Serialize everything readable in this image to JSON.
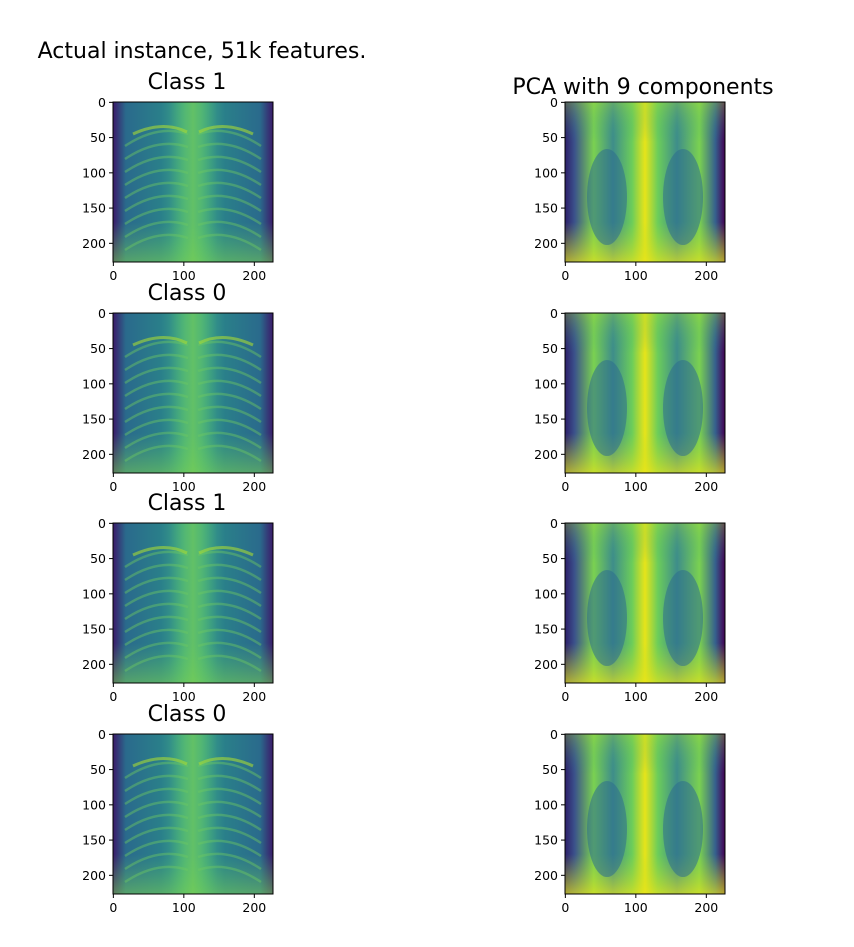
{
  "figure": {
    "suptitle_left": "Actual instance, 51k features.",
    "suptitle_right": "PCA with 9 components"
  },
  "chart_data": [
    {
      "type": "heatmap",
      "panel": "actual",
      "title": "Class 1",
      "xticks": [
        "0",
        "100",
        "200"
      ],
      "yticks": [
        "0",
        "50",
        "100",
        "150",
        "200"
      ],
      "xlim": [
        0,
        227
      ],
      "ylim": [
        227,
        0
      ],
      "colormap": "viridis"
    },
    {
      "type": "heatmap",
      "panel": "pca",
      "title": "",
      "xticks": [
        "0",
        "100",
        "200"
      ],
      "yticks": [
        "0",
        "50",
        "100",
        "150",
        "200"
      ],
      "xlim": [
        0,
        227
      ],
      "ylim": [
        227,
        0
      ],
      "colormap": "viridis"
    },
    {
      "type": "heatmap",
      "panel": "actual",
      "title": "Class 0",
      "xticks": [
        "0",
        "100",
        "200"
      ],
      "yticks": [
        "0",
        "50",
        "100",
        "150",
        "200"
      ],
      "xlim": [
        0,
        227
      ],
      "ylim": [
        227,
        0
      ],
      "colormap": "viridis"
    },
    {
      "type": "heatmap",
      "panel": "pca",
      "title": "",
      "xticks": [
        "0",
        "100",
        "200"
      ],
      "yticks": [
        "0",
        "50",
        "100",
        "150",
        "200"
      ],
      "xlim": [
        0,
        227
      ],
      "ylim": [
        227,
        0
      ],
      "colormap": "viridis"
    },
    {
      "type": "heatmap",
      "panel": "actual",
      "title": "Class 1",
      "xticks": [
        "0",
        "100",
        "200"
      ],
      "yticks": [
        "0",
        "50",
        "100",
        "150",
        "200"
      ],
      "xlim": [
        0,
        227
      ],
      "ylim": [
        227,
        0
      ],
      "colormap": "viridis"
    },
    {
      "type": "heatmap",
      "panel": "pca",
      "title": "",
      "xticks": [
        "0",
        "100",
        "200"
      ],
      "yticks": [
        "0",
        "50",
        "100",
        "150",
        "200"
      ],
      "xlim": [
        0,
        227
      ],
      "ylim": [
        227,
        0
      ],
      "colormap": "viridis"
    },
    {
      "type": "heatmap",
      "panel": "actual",
      "title": "Class 0",
      "xticks": [
        "0",
        "100",
        "200"
      ],
      "yticks": [
        "0",
        "50",
        "100",
        "150",
        "200"
      ],
      "xlim": [
        0,
        227
      ],
      "ylim": [
        227,
        0
      ],
      "colormap": "viridis"
    },
    {
      "type": "heatmap",
      "panel": "pca",
      "title": "",
      "xticks": [
        "0",
        "100",
        "200"
      ],
      "yticks": [
        "0",
        "50",
        "100",
        "150",
        "200"
      ],
      "xlim": [
        0,
        227
      ],
      "ylim": [
        227,
        0
      ],
      "colormap": "viridis"
    }
  ]
}
